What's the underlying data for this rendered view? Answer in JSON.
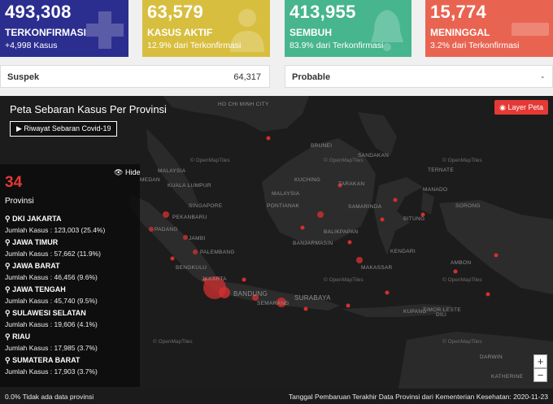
{
  "stats": {
    "confirmed": {
      "value": "493,308",
      "label": "TERKONFIRMASI",
      "sub": "+4,998 Kasus",
      "color": "#2b2e8f"
    },
    "active": {
      "value": "63,579",
      "label": "KASUS AKTIF",
      "sub": "12.9% dari Terkonfirmasi",
      "color": "#d8be3f"
    },
    "recovered": {
      "value": "413,955",
      "label": "SEMBUH",
      "sub": "83.9% dari Terkonfirmasi",
      "color": "#47b58e"
    },
    "deaths": {
      "value": "15,774",
      "label": "MENINGGAL",
      "sub": "3.2% dari Terkonfirmasi",
      "color": "#e86451"
    }
  },
  "suspek": {
    "label": "Suspek",
    "value": "64,317"
  },
  "probable": {
    "label": "Probable",
    "value": "-"
  },
  "map": {
    "title": "Peta Sebaran Kasus Per Provinsi",
    "history_button": "▶ Riwayat Sebaran Covid-19",
    "layer_button": "Layer Peta",
    "hide_button": "Hide",
    "zoom_in": "+",
    "zoom_out": "−",
    "tiles_attribution": "© OpenMapTiles",
    "cities": [
      "HO CHI MINH CITY",
      "MALAYSIA",
      "KUALA LUMPUR",
      "SINGAPORE",
      "PEKANBARU",
      "PADANG",
      "PALEMBANG",
      "JAMBI",
      "BENGKULU",
      "BANDUNG",
      "SURABAYA",
      "BRUNEI",
      "MALAYSIA",
      "KUCHING",
      "TARAKAN",
      "SAMARINDA",
      "BALIKPAPAN",
      "MAKASSAR",
      "MANADO",
      "SORONG",
      "AMBON",
      "KUPANG",
      "KATHERINE",
      "TIMOR-LESTE",
      "DARWIN",
      "BANJARMASIN",
      "PONTIANAK",
      "MEDAN",
      "JAKARTA",
      "SEMARANG",
      "TERNATE",
      "KENDARI",
      "DILI",
      "BITUNG",
      "SANDAKAN"
    ]
  },
  "provinces": {
    "count": "34",
    "label": "Provinsi",
    "items": [
      {
        "name": "DKI JAKARTA",
        "cases": "Jumlah Kasus : 123,003 (25.4%)"
      },
      {
        "name": "JAWA TIMUR",
        "cases": "Jumlah Kasus : 57,662 (11.9%)"
      },
      {
        "name": "JAWA BARAT",
        "cases": "Jumlah Kasus : 46,456 (9.6%)"
      },
      {
        "name": "JAWA TENGAH",
        "cases": "Jumlah Kasus : 45,740 (9.5%)"
      },
      {
        "name": "SULAWESI SELATAN",
        "cases": "Jumlah Kasus : 19,606 (4.1%)"
      },
      {
        "name": "RIAU",
        "cases": "Jumlah Kasus : 17,985 (3.7%)"
      },
      {
        "name": "SUMATERA BARAT",
        "cases": "Jumlah Kasus : 17,903 (3.7%)"
      }
    ]
  },
  "footer": {
    "left": "0.0% Tidak ada data provinsi",
    "right": "Tanggal Pembaruan Terakhir Data Provinsi dari Kementerian Kesehatan: 2020-11-23"
  }
}
